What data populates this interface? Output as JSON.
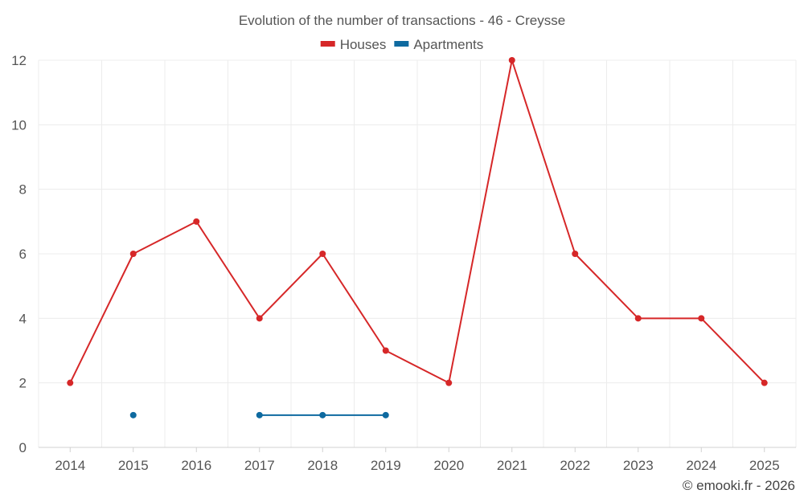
{
  "chart_data": {
    "type": "line",
    "title": "Evolution of the number of transactions - 46 - Creysse",
    "xlabel": "",
    "ylabel": "",
    "categories": [
      "2014",
      "2015",
      "2016",
      "2017",
      "2018",
      "2019",
      "2020",
      "2021",
      "2022",
      "2023",
      "2024",
      "2025"
    ],
    "ylim": [
      0,
      12
    ],
    "yticks": [
      0,
      2,
      4,
      6,
      8,
      10,
      12
    ],
    "grid": true,
    "legend_position": "top-center",
    "series": [
      {
        "name": "Houses",
        "color": "#d62728",
        "values": [
          2,
          6,
          7,
          4,
          6,
          3,
          2,
          12,
          6,
          4,
          4,
          2
        ]
      },
      {
        "name": "Apartments",
        "color": "#0e6aa0",
        "values": [
          null,
          1,
          null,
          1,
          1,
          1,
          null,
          null,
          null,
          null,
          null,
          null
        ]
      }
    ]
  },
  "credit": "© emooki.fr - 2026"
}
